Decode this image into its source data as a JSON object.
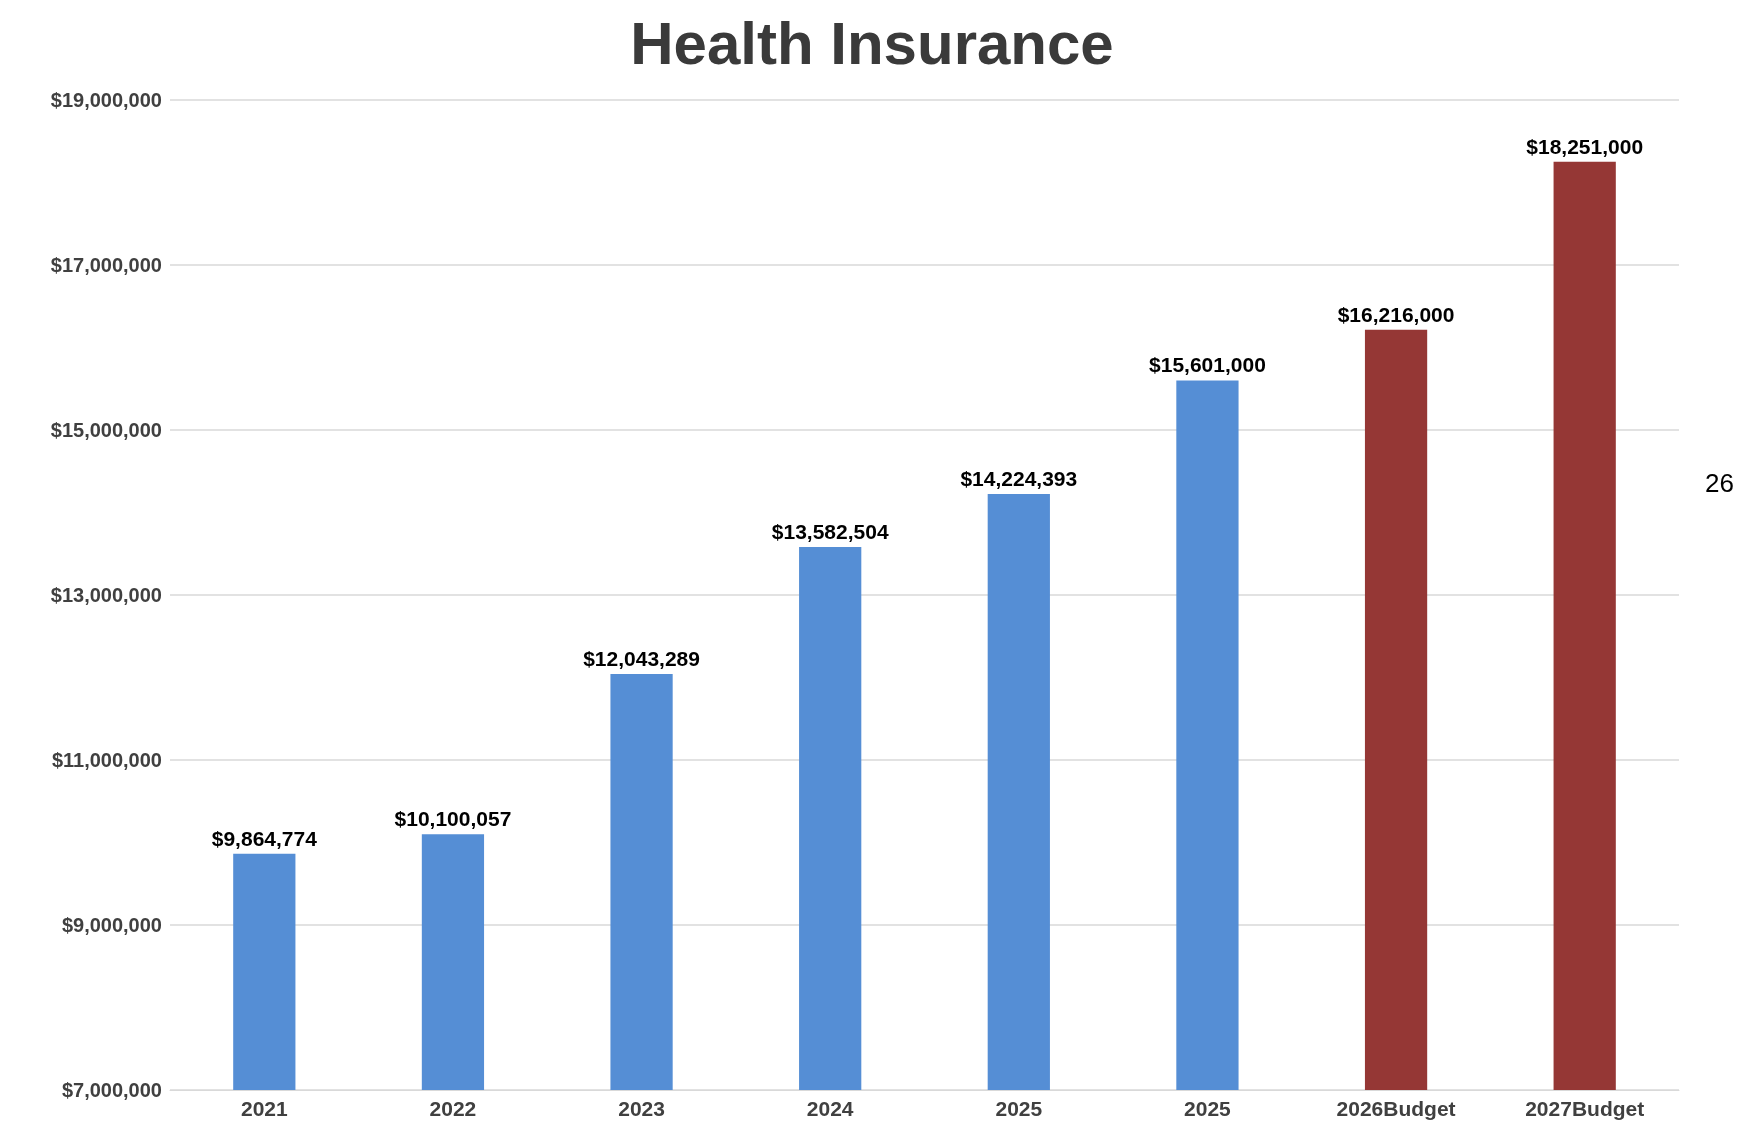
{
  "chart_data": {
    "type": "bar",
    "title": "Health Insurance",
    "categories": [
      "2021",
      "2022",
      "2023",
      "2024",
      "2025",
      "2025",
      "2026Budget",
      "2027Budget"
    ],
    "values": [
      9864774,
      10100057,
      12043289,
      13582504,
      14224393,
      15601000,
      16216000,
      18251000
    ],
    "colors": [
      "#558ed5",
      "#558ed5",
      "#558ed5",
      "#558ed5",
      "#558ed5",
      "#558ed5",
      "#953735",
      "#953735"
    ],
    "value_labels": [
      "$9,864,774",
      "$10,100,057",
      "$12,043,289",
      "$13,582,504",
      "$14,224,393",
      "$15,601,000",
      "$16,216,000",
      "$18,251,000"
    ],
    "ylim": [
      7000000,
      19000000
    ],
    "yticks": [
      {
        "value": 7000000,
        "label": "$7,000,000"
      },
      {
        "value": 9000000,
        "label": "$9,000,000"
      },
      {
        "value": 11000000,
        "label": "$11,000,000"
      },
      {
        "value": 13000000,
        "label": "$13,000,000"
      },
      {
        "value": 15000000,
        "label": "$15,000,000"
      },
      {
        "value": 17000000,
        "label": "$17,000,000"
      },
      {
        "value": 19000000,
        "label": "$19,000,000"
      }
    ],
    "grid": "y",
    "annotations": [
      "26"
    ]
  }
}
